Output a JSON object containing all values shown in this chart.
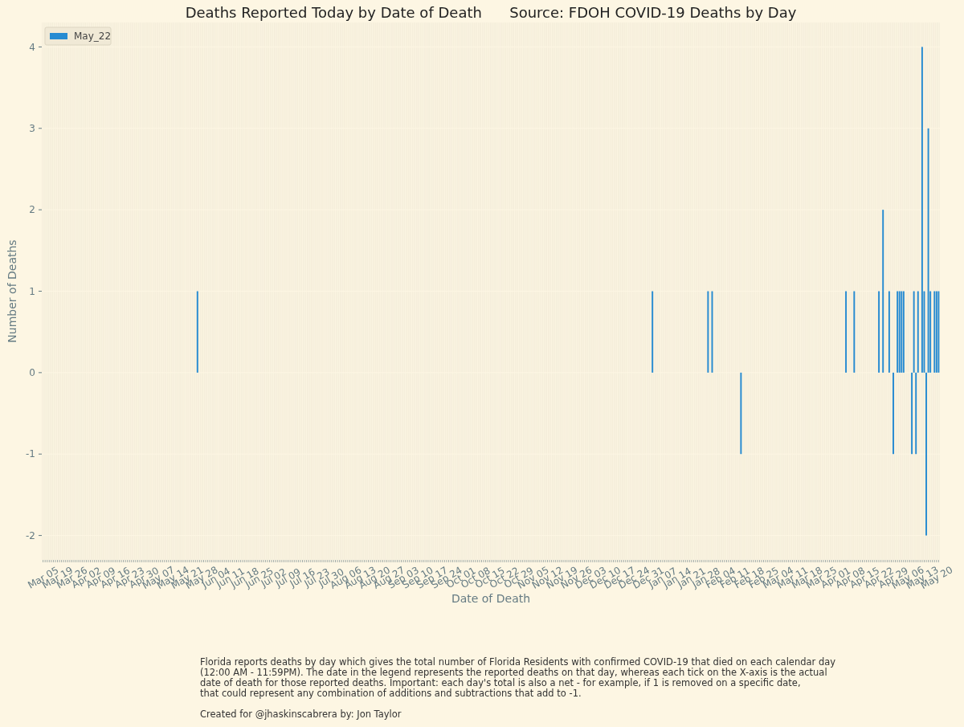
{
  "chart_data": {
    "type": "bar",
    "title": "Deaths Reported Today by Date of Death      Source: FDOH COVID-19 Deaths by Day",
    "xlabel": "Date of Death",
    "ylabel": "Number of Deaths",
    "categories": [
      "Mar 05",
      null,
      null,
      null,
      null,
      null,
      null,
      "Mar 19",
      null,
      null,
      null,
      null,
      null,
      null,
      "Mar 26",
      null,
      null,
      null,
      null,
      null,
      null,
      "Apr 02",
      null,
      null,
      null,
      null,
      null,
      null,
      "Apr 09",
      null,
      null,
      null,
      null,
      null,
      null,
      "Apr 16",
      null,
      null,
      null,
      null,
      null,
      null,
      "Apr 23",
      null,
      null,
      null,
      null,
      null,
      null,
      "Apr 30",
      null,
      null,
      null,
      null,
      null,
      null,
      "May 07",
      null,
      null,
      null,
      null,
      null,
      null,
      "May 14",
      null,
      null,
      null,
      null,
      null,
      null,
      "May 21",
      null,
      null,
      null,
      null,
      null,
      null,
      "May 28",
      null,
      null,
      null,
      null,
      null,
      null,
      "Jun 04",
      null,
      null,
      null,
      null,
      null,
      null,
      "Jun 11",
      null,
      null,
      null,
      null,
      null,
      null,
      "Jun 18",
      null,
      null,
      null,
      null,
      null,
      null,
      "Jun 25",
      null,
      null,
      null,
      null,
      null,
      null,
      "Jul 02",
      null,
      null,
      null,
      null,
      null,
      null,
      "Jul 09",
      null,
      null,
      null,
      null,
      null,
      null,
      "Jul 16",
      null,
      null,
      null,
      null,
      null,
      null,
      "Jul 23",
      null,
      null,
      null,
      null,
      null,
      null,
      "Jul 30",
      null,
      null,
      null,
      null,
      null,
      null,
      "Aug 06",
      null,
      null,
      null,
      null,
      null,
      null,
      "Aug 13",
      null,
      null,
      null,
      null,
      null,
      null,
      "Aug 20",
      null,
      null,
      null,
      null,
      null,
      null,
      "Aug 27",
      null,
      null,
      null,
      null,
      null,
      null,
      "Sep 03",
      null,
      null,
      null,
      null,
      null,
      null,
      "Sep 10",
      null,
      null,
      null,
      null,
      null,
      null,
      "Sep 17",
      null,
      null,
      null,
      null,
      null,
      null,
      "Sep 24",
      null,
      null,
      null,
      null,
      null,
      null,
      "Oct 01",
      null,
      null,
      null,
      null,
      null,
      null,
      "Oct 08",
      null,
      null,
      null,
      null,
      null,
      null,
      "Oct 15",
      null,
      null,
      null,
      null,
      null,
      null,
      "Oct 22",
      null,
      null,
      null,
      null,
      null,
      null,
      "Oct 29",
      null,
      null,
      null,
      null,
      null,
      null,
      "Nov 05",
      null,
      null,
      null,
      null,
      null,
      null,
      "Nov 12",
      null,
      null,
      null,
      null,
      null,
      null,
      "Nov 19",
      null,
      null,
      null,
      null,
      null,
      null,
      "Nov 26",
      null,
      null,
      null,
      null,
      null,
      null,
      "Dec 03",
      null,
      null,
      null,
      null,
      null,
      null,
      "Dec 10",
      null,
      null,
      null,
      null,
      null,
      null,
      "Dec 17",
      null,
      null,
      null,
      null,
      null,
      null,
      "Dec 24",
      null,
      null,
      null,
      null,
      null,
      null,
      "Dec 31",
      null,
      null,
      null,
      null,
      null,
      null,
      "Jan 07",
      null,
      null,
      null,
      null,
      null,
      null,
      "Jan 14",
      null,
      null,
      null,
      null,
      null,
      null,
      "Jan 21",
      null,
      null,
      null,
      null,
      null,
      null,
      "Jan 28",
      null,
      null,
      null,
      null,
      null,
      null,
      "Feb 04",
      null,
      null,
      null,
      null,
      null,
      null,
      "Feb 11",
      null,
      null,
      null,
      null,
      null,
      null,
      "Feb 18",
      null,
      null,
      null,
      null,
      null,
      null,
      "Feb 25",
      null,
      null,
      null,
      null,
      null,
      null,
      "Mar 04",
      null,
      null,
      null,
      null,
      null,
      null,
      "Mar 11",
      null,
      null,
      null,
      null,
      null,
      null,
      "Mar 18",
      null,
      null,
      null,
      null,
      null,
      null,
      "Mar 25",
      null,
      null,
      null,
      null,
      null,
      null,
      "Apr 01",
      null,
      null,
      null,
      null,
      null,
      null,
      "Apr 08",
      null,
      null,
      null,
      null,
      null,
      null,
      "Apr 15",
      null,
      null,
      null,
      null,
      null,
      null,
      "Apr 22",
      null,
      null,
      null,
      null,
      null,
      null,
      "Apr 29",
      null,
      null,
      null,
      null,
      null,
      null,
      "May 06",
      null,
      null,
      null,
      null,
      null,
      null,
      "May 13",
      null,
      null,
      null,
      null,
      null,
      null,
      "May 20",
      null
    ],
    "series": [
      {
        "name": "May_22",
        "color": "#268bd2",
        "values": [
          0,
          0,
          0,
          0,
          0,
          0,
          0,
          0,
          0,
          0,
          0,
          0,
          0,
          0,
          0,
          0,
          0,
          0,
          0,
          0,
          0,
          0,
          0,
          0,
          0,
          0,
          0,
          0,
          0,
          0,
          0,
          0,
          0,
          0,
          0,
          0,
          0,
          0,
          0,
          0,
          0,
          0,
          0,
          0,
          0,
          0,
          0,
          0,
          0,
          0,
          0,
          0,
          0,
          0,
          0,
          0,
          0,
          0,
          0,
          0,
          0,
          0,
          0,
          0,
          0,
          0,
          0,
          0,
          0,
          0,
          0,
          0,
          0,
          0,
          0,
          1,
          0,
          0,
          0,
          0,
          0,
          0,
          0,
          0,
          0,
          0,
          0,
          0,
          0,
          0,
          0,
          0,
          0,
          0,
          0,
          0,
          0,
          0,
          0,
          0,
          0,
          0,
          0,
          0,
          0,
          0,
          0,
          0,
          0,
          0,
          0,
          0,
          0,
          0,
          0,
          0,
          0,
          0,
          0,
          0,
          0,
          0,
          0,
          0,
          0,
          0,
          0,
          0,
          0,
          0,
          0,
          0,
          0,
          0,
          0,
          0,
          0,
          0,
          0,
          0,
          0,
          0,
          0,
          0,
          0,
          0,
          0,
          0,
          0,
          0,
          0,
          0,
          0,
          0,
          0,
          0,
          0,
          0,
          0,
          0,
          0,
          0,
          0,
          0,
          0,
          0,
          0,
          0,
          0,
          0,
          0,
          0,
          0,
          0,
          0,
          0,
          0,
          0,
          0,
          0,
          0,
          0,
          0,
          0,
          0,
          0,
          0,
          0,
          0,
          0,
          0,
          0,
          0,
          0,
          0,
          0,
          0,
          0,
          0,
          0,
          0,
          0,
          0,
          0,
          0,
          0,
          0,
          0,
          0,
          0,
          0,
          0,
          0,
          0,
          0,
          0,
          0,
          0,
          0,
          0,
          0,
          0,
          0,
          0,
          0,
          0,
          0,
          0,
          0,
          0,
          0,
          0,
          0,
          0,
          0,
          0,
          0,
          0,
          0,
          0,
          0,
          0,
          0,
          0,
          0,
          0,
          0,
          0,
          0,
          0,
          0,
          0,
          0,
          0,
          0,
          0,
          0,
          0,
          0,
          0,
          0,
          0,
          0,
          0,
          0,
          0,
          0,
          0,
          0,
          0,
          0,
          0,
          0,
          0,
          0,
          0,
          0,
          0,
          0,
          0,
          0,
          0,
          0,
          0,
          0,
          0,
          0,
          0,
          0,
          0,
          0,
          0,
          0,
          0,
          0,
          0,
          1,
          0,
          0,
          0,
          0,
          0,
          0,
          0,
          0,
          0,
          0,
          0,
          0,
          0,
          0,
          0,
          0,
          0,
          0,
          0,
          0,
          0,
          0,
          0,
          0,
          0,
          0,
          1,
          0,
          1,
          0,
          0,
          0,
          0,
          0,
          0,
          0,
          0,
          0,
          0,
          0,
          0,
          0,
          -1,
          0,
          0,
          0,
          0,
          0,
          0,
          0,
          0,
          0,
          0,
          0,
          0,
          0,
          0,
          0,
          0,
          0,
          0,
          0,
          0,
          0,
          0,
          0,
          0,
          0,
          0,
          0,
          0,
          0,
          0,
          0,
          0,
          0,
          0,
          0,
          0,
          0,
          0,
          0,
          0,
          0,
          0,
          0,
          0,
          0,
          0,
          0,
          0,
          0,
          0,
          1,
          0,
          0,
          0,
          1,
          0,
          0,
          0,
          0,
          0,
          0,
          0,
          0,
          0,
          0,
          0,
          1,
          0,
          2,
          0,
          0,
          1,
          0,
          -1,
          0,
          1,
          1,
          1,
          1,
          0,
          0,
          0,
          -1,
          1,
          -1,
          1,
          0,
          4,
          1,
          -2,
          3,
          1,
          0,
          1,
          1,
          1
        ]
      }
    ],
    "ylim": [
      -2.3,
      4.3
    ],
    "yticks": [
      -2,
      -1,
      0,
      1,
      2,
      3,
      4
    ],
    "grid": true,
    "legend": "top left",
    "annotations": [
      "Florida reports deaths by day which gives the total number of Florida Residents with confirmed COVID-19 that died on each calendar day\n(12:00 AM - 11:59PM). The date in the legend represents the reported deaths on that day, whereas each tick on the X-axis is the actual\ndate of death for those reported deaths. Important: each day's total is also a net - for example, if 1 is removed on a specific date,\nthat could represent any combination of additions and subtractions that add to -1.",
      "Created for @jhaskinscabrera by: Jon Taylor"
    ]
  }
}
